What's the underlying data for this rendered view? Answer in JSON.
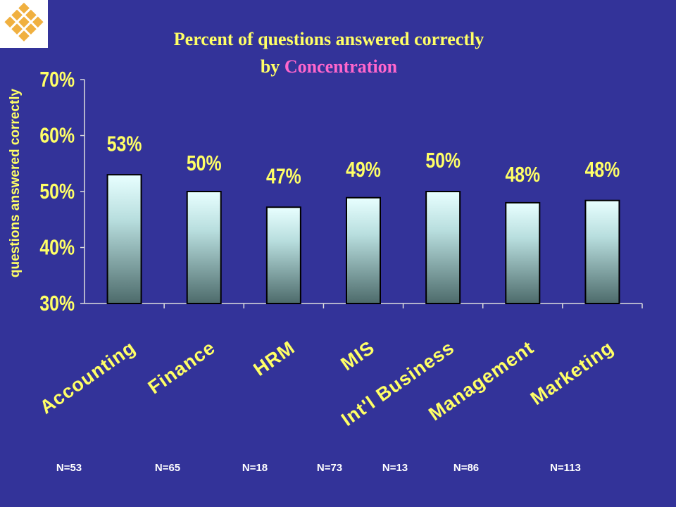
{
  "chart_data": {
    "type": "bar",
    "title": "Percent of questions answered correctly",
    "title_prefix": "by",
    "title_highlight": "Concentration",
    "y_label": "questions answered correctly",
    "categories": [
      "Accounting",
      "Finance",
      "HRM",
      "MIS",
      "Int'l Business",
      "Management",
      "Marketing"
    ],
    "values": [
      53,
      50,
      47.2,
      48.9,
      50,
      48,
      48.4
    ],
    "value_labels": [
      "53%",
      "50%",
      "47%",
      "49%",
      "50%",
      "48%",
      "48%"
    ],
    "sample_sizes": [
      "N=53",
      "N=65",
      "N=18",
      "N=73",
      "N=13",
      "N=86",
      "N=113"
    ],
    "ylim": [
      30,
      70
    ],
    "yticks": [
      {
        "value": 30,
        "label": "30%"
      },
      {
        "value": 40,
        "label": "40%"
      },
      {
        "value": 50,
        "label": "50%"
      },
      {
        "value": 60,
        "label": "60%"
      },
      {
        "value": 70,
        "label": "70%"
      }
    ],
    "grid": false
  }
}
